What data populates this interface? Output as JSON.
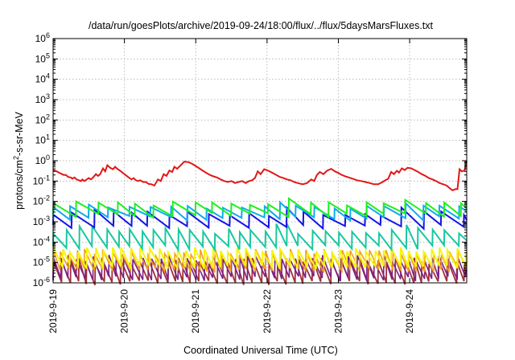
{
  "chart_data": {
    "type": "line",
    "title": "/data/run/goesPlots/archive/2019-09-24/18:00/flux/../flux/5daysMarsFluxes.txt",
    "xlabel": "Coordinated Universal Time (UTC)",
    "ylabel": "protons/cm2-s-sr-MeV",
    "ylabel_parts": [
      "protons/cm",
      "2",
      "-s-sr-MeV"
    ],
    "yscale": "log",
    "ylim": [
      1e-06,
      1000000.0
    ],
    "xlim": [
      0,
      5.8
    ],
    "grid": true,
    "legend": "none",
    "y_tick_base": "10",
    "y_tick_exponents": [
      "-6",
      "-5",
      "-4",
      "-3",
      "-2",
      "-1",
      "0",
      "1",
      "2",
      "3",
      "4",
      "5",
      "6"
    ],
    "x_tick_labels": [
      "2019-9-19",
      "2019-9-20",
      "2019-9-21",
      "2019-9-22",
      "2019-9-23",
      "2019-9-24"
    ],
    "x_tick_days": [
      0,
      1,
      2,
      3,
      4,
      5
    ],
    "series": [
      {
        "color": "#e01818",
        "width": 2,
        "points": [
          [
            0.0,
            0.35
          ],
          [
            0.05,
            0.3
          ],
          [
            0.1,
            0.24
          ],
          [
            0.15,
            0.2
          ],
          [
            0.18,
            0.2
          ],
          [
            0.21,
            0.16
          ],
          [
            0.25,
            0.15
          ],
          [
            0.27,
            0.13
          ],
          [
            0.3,
            0.15
          ],
          [
            0.33,
            0.12
          ],
          [
            0.36,
            0.11
          ],
          [
            0.39,
            0.1
          ],
          [
            0.41,
            0.12
          ],
          [
            0.44,
            0.1
          ],
          [
            0.47,
            0.12
          ],
          [
            0.5,
            0.14
          ],
          [
            0.53,
            0.12
          ],
          [
            0.56,
            0.15
          ],
          [
            0.6,
            0.22
          ],
          [
            0.63,
            0.18
          ],
          [
            0.66,
            0.22
          ],
          [
            0.7,
            0.42
          ],
          [
            0.73,
            0.3
          ],
          [
            0.76,
            0.6
          ],
          [
            0.8,
            0.45
          ],
          [
            0.84,
            0.38
          ],
          [
            0.87,
            0.5
          ],
          [
            0.9,
            0.4
          ],
          [
            0.95,
            0.3
          ],
          [
            1.0,
            0.22
          ],
          [
            1.05,
            0.16
          ],
          [
            1.1,
            0.12
          ],
          [
            1.13,
            0.14
          ],
          [
            1.16,
            0.11
          ],
          [
            1.19,
            0.1
          ],
          [
            1.22,
            0.11
          ],
          [
            1.26,
            0.09
          ],
          [
            1.3,
            0.09
          ],
          [
            1.34,
            0.072
          ],
          [
            1.38,
            0.07
          ],
          [
            1.42,
            0.06
          ],
          [
            1.47,
            0.12
          ],
          [
            1.51,
            0.1
          ],
          [
            1.55,
            0.22
          ],
          [
            1.59,
            0.18
          ],
          [
            1.63,
            0.33
          ],
          [
            1.67,
            0.28
          ],
          [
            1.7,
            0.5
          ],
          [
            1.74,
            0.4
          ],
          [
            1.79,
            0.6
          ],
          [
            1.84,
            0.9
          ],
          [
            1.9,
            0.85
          ],
          [
            1.95,
            0.7
          ],
          [
            2.0,
            0.55
          ],
          [
            2.05,
            0.42
          ],
          [
            2.1,
            0.32
          ],
          [
            2.16,
            0.24
          ],
          [
            2.2,
            0.2
          ],
          [
            2.25,
            0.17
          ],
          [
            2.3,
            0.15
          ],
          [
            2.35,
            0.12
          ],
          [
            2.4,
            0.1
          ],
          [
            2.45,
            0.09
          ],
          [
            2.5,
            0.1
          ],
          [
            2.55,
            0.08
          ],
          [
            2.6,
            0.09
          ],
          [
            2.65,
            0.1
          ],
          [
            2.7,
            0.08
          ],
          [
            2.75,
            0.1
          ],
          [
            2.79,
            0.11
          ],
          [
            2.83,
            0.14
          ],
          [
            2.87,
            0.3
          ],
          [
            2.91,
            0.22
          ],
          [
            2.96,
            0.38
          ],
          [
            3.02,
            0.32
          ],
          [
            3.08,
            0.25
          ],
          [
            3.13,
            0.2
          ],
          [
            3.18,
            0.16
          ],
          [
            3.23,
            0.14
          ],
          [
            3.28,
            0.12
          ],
          [
            3.33,
            0.11
          ],
          [
            3.38,
            0.09
          ],
          [
            3.43,
            0.08
          ],
          [
            3.5,
            0.07
          ],
          [
            3.56,
            0.08
          ],
          [
            3.62,
            0.12
          ],
          [
            3.66,
            0.1
          ],
          [
            3.7,
            0.2
          ],
          [
            3.74,
            0.28
          ],
          [
            3.79,
            0.22
          ],
          [
            3.84,
            0.32
          ],
          [
            3.9,
            0.4
          ],
          [
            3.95,
            0.3
          ],
          [
            4.0,
            0.25
          ],
          [
            4.05,
            0.2
          ],
          [
            4.1,
            0.17
          ],
          [
            4.15,
            0.15
          ],
          [
            4.2,
            0.13
          ],
          [
            4.26,
            0.11
          ],
          [
            4.32,
            0.1
          ],
          [
            4.38,
            0.09
          ],
          [
            4.44,
            0.08
          ],
          [
            4.5,
            0.07
          ],
          [
            4.56,
            0.07
          ],
          [
            4.62,
            0.09
          ],
          [
            4.66,
            0.11
          ],
          [
            4.7,
            0.13
          ],
          [
            4.74,
            0.28
          ],
          [
            4.78,
            0.22
          ],
          [
            4.82,
            0.32
          ],
          [
            4.85,
            0.26
          ],
          [
            4.89,
            0.42
          ],
          [
            4.93,
            0.35
          ],
          [
            4.97,
            0.45
          ],
          [
            5.02,
            0.42
          ],
          [
            5.07,
            0.35
          ],
          [
            5.12,
            0.28
          ],
          [
            5.17,
            0.22
          ],
          [
            5.22,
            0.18
          ],
          [
            5.27,
            0.14
          ],
          [
            5.32,
            0.12
          ],
          [
            5.37,
            0.1
          ],
          [
            5.42,
            0.08
          ],
          [
            5.47,
            0.07
          ],
          [
            5.52,
            0.06
          ],
          [
            5.56,
            0.045
          ],
          [
            5.6,
            0.035
          ],
          [
            5.64,
            0.04
          ],
          [
            5.67,
            0.04
          ],
          [
            5.7,
            0.38
          ],
          [
            5.73,
            0.3
          ],
          [
            5.77,
            0.33
          ],
          [
            5.8,
            1.0
          ]
        ]
      },
      {
        "color": "#1ef01e",
        "width": 2,
        "sawtooth": {
          "base": 0.0045,
          "amp": 0.0035,
          "period": 0.27,
          "seed": 1,
          "bumps": [
            [
              0.45,
              0.01
            ],
            [
              1.85,
              0.008
            ],
            [
              3.2,
              0.014
            ],
            [
              4.9,
              0.012
            ]
          ]
        }
      },
      {
        "color": "#11aaee",
        "width": 2,
        "sawtooth": {
          "base": 0.0032,
          "amp": 0.0022,
          "period": 0.27,
          "seed": 2,
          "bumps": [
            [
              0.45,
              0.007
            ],
            [
              1.85,
              0.006
            ],
            [
              3.2,
              0.009
            ],
            [
              4.9,
              0.008
            ]
          ]
        }
      },
      {
        "color": "#1414e8",
        "width": 2,
        "sawtooth": {
          "base": 0.0012,
          "amp": 0.0014,
          "period": 0.27,
          "seed": 3,
          "bumps": [
            [
              0.45,
              0.004
            ],
            [
              1.85,
              0.003
            ],
            [
              3.2,
              0.005
            ],
            [
              4.9,
              0.005
            ]
          ]
        }
      },
      {
        "color": "#18c8a0",
        "width": 2,
        "sawtooth": {
          "base": 0.00012,
          "amp": 0.00025,
          "period": 0.18,
          "seed": 4,
          "bumps": [
            [
              0.45,
              0.0006
            ],
            [
              1.85,
              0.0004
            ],
            [
              3.2,
              0.0008
            ],
            [
              4.9,
              0.0007
            ]
          ]
        }
      },
      {
        "color": "#f5f50a",
        "width": 2,
        "sawtooth": {
          "base": 1.3e-05,
          "amp": 3e-05,
          "period": 0.12,
          "seed": 5,
          "bumps": []
        }
      },
      {
        "color": "#f0a020",
        "width": 1.6,
        "sawtooth": {
          "base": 9e-06,
          "amp": 2.5e-05,
          "period": 0.12,
          "seed": 6,
          "bumps": []
        }
      },
      {
        "color": "#7a1f8a",
        "width": 1.6,
        "sawtooth": {
          "base": 3.5e-06,
          "amp": 1.4e-05,
          "period": 0.12,
          "seed": 7,
          "bumps": []
        }
      },
      {
        "color": "#a0303a",
        "width": 1.8,
        "sawtooth": {
          "base": 2.2e-06,
          "amp": 1e-05,
          "period": 0.12,
          "seed": 8,
          "bumps": []
        }
      }
    ]
  }
}
